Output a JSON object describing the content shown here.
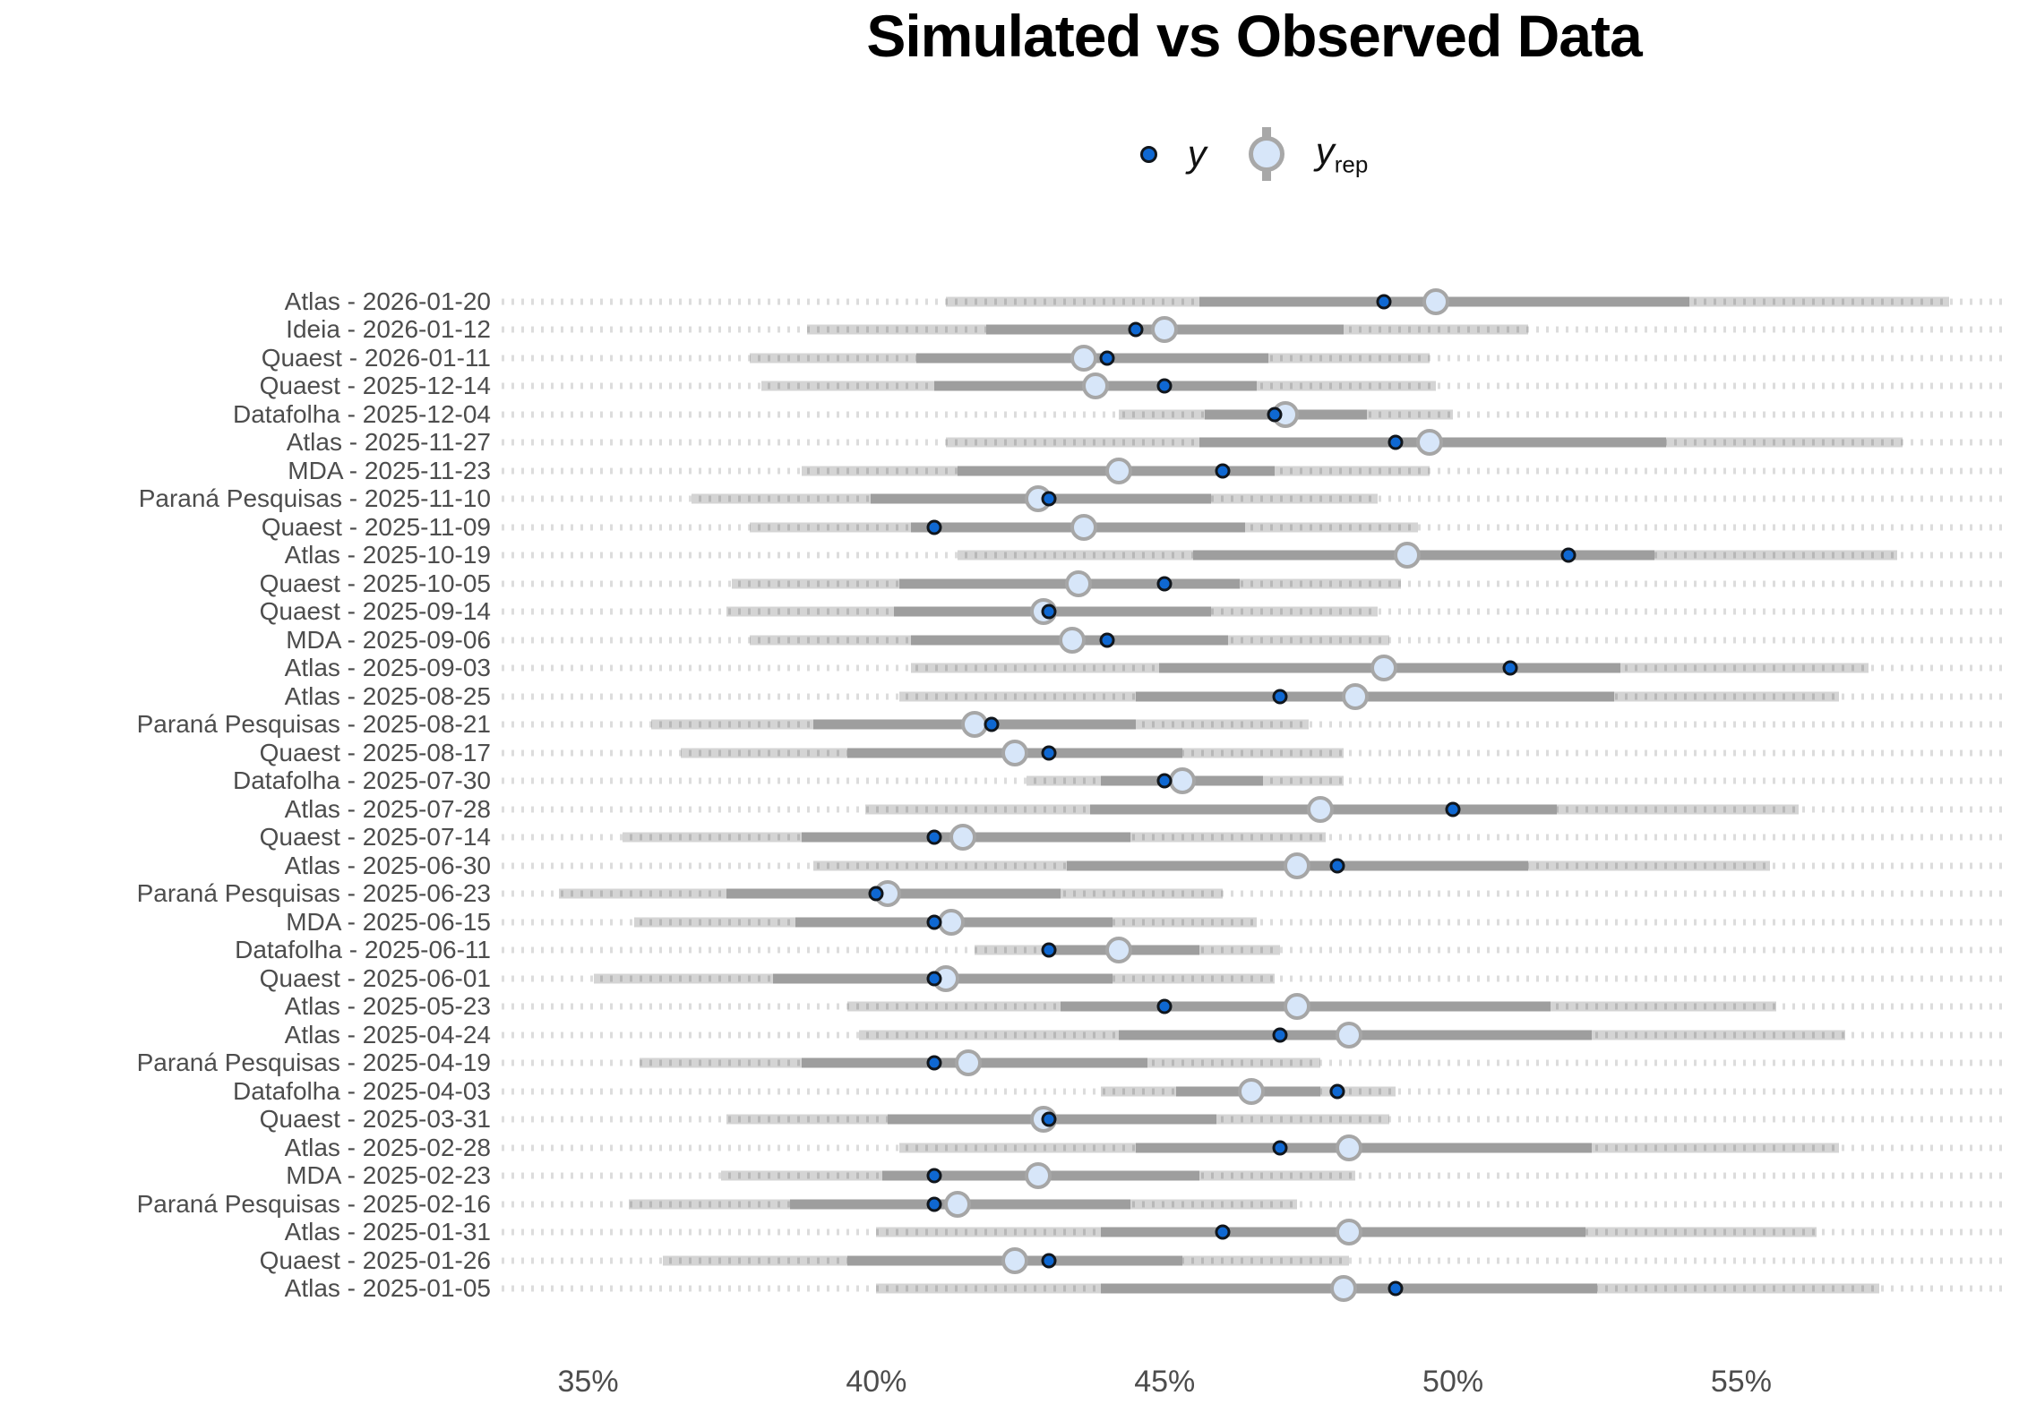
{
  "chart_data": {
    "type": "scatter",
    "title": "Simulated vs Observed Data",
    "xlabel": "",
    "ylabel": "",
    "x_unit": "%",
    "xlim": [
      33.5,
      59.6
    ],
    "xticks": [
      35,
      40,
      45,
      50,
      55
    ],
    "x_tick_suffix": "%",
    "grid": "dotted horizontal row guides only",
    "legend_position": "top-center",
    "legend": {
      "y": "y",
      "yrep_base": "y",
      "yrep_sub": "rep"
    },
    "series_meaning": {
      "y": "observed poll value (dark blue dot)",
      "y_rep": "posterior predictive mean (light blue circle)",
      "inner_interval": "dark gray thick bar",
      "outer_interval": "light gray bar"
    },
    "rows": [
      {
        "label": "Atlas - 2026-01-20",
        "outer": [
          41.2,
          58.6
        ],
        "inner": [
          45.6,
          54.1
        ],
        "y_rep": 49.7,
        "y": 48.8
      },
      {
        "label": "Ideia - 2026-01-12",
        "outer": [
          38.8,
          51.3
        ],
        "inner": [
          41.9,
          48.1
        ],
        "y_rep": 45.0,
        "y": 44.5
      },
      {
        "label": "Quaest - 2026-01-11",
        "outer": [
          37.8,
          49.6
        ],
        "inner": [
          40.7,
          46.8
        ],
        "y_rep": 43.6,
        "y": 44.0
      },
      {
        "label": "Quaest - 2025-12-14",
        "outer": [
          38.0,
          49.7
        ],
        "inner": [
          41.0,
          46.6
        ],
        "y_rep": 43.8,
        "y": 45.0
      },
      {
        "label": "Datafolha - 2025-12-04",
        "outer": [
          44.2,
          50.0
        ],
        "inner": [
          45.7,
          48.5
        ],
        "y_rep": 47.1,
        "y": 46.9
      },
      {
        "label": "Atlas - 2025-11-27",
        "outer": [
          41.2,
          57.8
        ],
        "inner": [
          45.6,
          53.7
        ],
        "y_rep": 49.6,
        "y": 49.0
      },
      {
        "label": "MDA - 2025-11-23",
        "outer": [
          38.7,
          49.6
        ],
        "inner": [
          41.4,
          46.9
        ],
        "y_rep": 44.2,
        "y": 46.0
      },
      {
        "label": "Paraná Pesquisas - 2025-11-10",
        "outer": [
          36.8,
          48.7
        ],
        "inner": [
          39.9,
          45.8
        ],
        "y_rep": 42.8,
        "y": 43.0
      },
      {
        "label": "Quaest - 2025-11-09",
        "outer": [
          37.8,
          49.4
        ],
        "inner": [
          40.6,
          46.4
        ],
        "y_rep": 43.6,
        "y": 41.0
      },
      {
        "label": "Atlas - 2025-10-19",
        "outer": [
          41.4,
          57.7
        ],
        "inner": [
          45.5,
          53.5
        ],
        "y_rep": 49.2,
        "y": 52.0
      },
      {
        "label": "Quaest - 2025-10-05",
        "outer": [
          37.5,
          49.1
        ],
        "inner": [
          40.4,
          46.3
        ],
        "y_rep": 43.5,
        "y": 45.0
      },
      {
        "label": "Quaest - 2025-09-14",
        "outer": [
          37.4,
          48.7
        ],
        "inner": [
          40.3,
          45.8
        ],
        "y_rep": 42.9,
        "y": 43.0
      },
      {
        "label": "MDA - 2025-09-06",
        "outer": [
          37.8,
          48.9
        ],
        "inner": [
          40.6,
          46.1
        ],
        "y_rep": 43.4,
        "y": 44.0
      },
      {
        "label": "Atlas - 2025-09-03",
        "outer": [
          40.6,
          57.2
        ],
        "inner": [
          44.9,
          52.9
        ],
        "y_rep": 48.8,
        "y": 51.0
      },
      {
        "label": "Atlas - 2025-08-25",
        "outer": [
          40.4,
          56.7
        ],
        "inner": [
          44.5,
          52.8
        ],
        "y_rep": 48.3,
        "y": 47.0
      },
      {
        "label": "Paraná Pesquisas - 2025-08-21",
        "outer": [
          36.1,
          47.5
        ],
        "inner": [
          38.9,
          44.5
        ],
        "y_rep": 41.7,
        "y": 42.0
      },
      {
        "label": "Quaest - 2025-08-17",
        "outer": [
          36.6,
          48.1
        ],
        "inner": [
          39.5,
          45.3
        ],
        "y_rep": 42.4,
        "y": 43.0
      },
      {
        "label": "Datafolha - 2025-07-30",
        "outer": [
          42.6,
          48.1
        ],
        "inner": [
          43.9,
          46.7
        ],
        "y_rep": 45.3,
        "y": 45.0
      },
      {
        "label": "Atlas - 2025-07-28",
        "outer": [
          39.8,
          56.0
        ],
        "inner": [
          43.7,
          51.8
        ],
        "y_rep": 47.7,
        "y": 50.0
      },
      {
        "label": "Quaest - 2025-07-14",
        "outer": [
          35.6,
          47.8
        ],
        "inner": [
          38.7,
          44.4
        ],
        "y_rep": 41.5,
        "y": 41.0
      },
      {
        "label": "Atlas - 2025-06-30",
        "outer": [
          38.9,
          55.5
        ],
        "inner": [
          43.3,
          51.3
        ],
        "y_rep": 47.3,
        "y": 48.0
      },
      {
        "label": "Paraná Pesquisas - 2025-06-23",
        "outer": [
          34.5,
          46.0
        ],
        "inner": [
          37.4,
          43.2
        ],
        "y_rep": 40.2,
        "y": 40.0
      },
      {
        "label": "MDA - 2025-06-15",
        "outer": [
          35.8,
          46.6
        ],
        "inner": [
          38.6,
          44.1
        ],
        "y_rep": 41.3,
        "y": 41.0
      },
      {
        "label": "Datafolha - 2025-06-11",
        "outer": [
          41.7,
          47.0
        ],
        "inner": [
          43.0,
          45.6
        ],
        "y_rep": 44.2,
        "y": 43.0
      },
      {
        "label": "Quaest - 2025-06-01",
        "outer": [
          35.1,
          46.9
        ],
        "inner": [
          38.2,
          44.1
        ],
        "y_rep": 41.2,
        "y": 41.0
      },
      {
        "label": "Atlas - 2025-05-23",
        "outer": [
          39.5,
          55.6
        ],
        "inner": [
          43.2,
          51.7
        ],
        "y_rep": 47.3,
        "y": 45.0
      },
      {
        "label": "Atlas - 2025-04-24",
        "outer": [
          39.7,
          56.8
        ],
        "inner": [
          44.2,
          52.4
        ],
        "y_rep": 48.2,
        "y": 47.0
      },
      {
        "label": "Paraná Pesquisas - 2025-04-19",
        "outer": [
          35.9,
          47.7
        ],
        "inner": [
          38.7,
          44.7
        ],
        "y_rep": 41.6,
        "y": 41.0
      },
      {
        "label": "Datafolha - 2025-04-03",
        "outer": [
          43.9,
          49.0
        ],
        "inner": [
          45.2,
          47.7
        ],
        "y_rep": 46.5,
        "y": 48.0
      },
      {
        "label": "Quaest - 2025-03-31",
        "outer": [
          37.4,
          48.9
        ],
        "inner": [
          40.2,
          45.9
        ],
        "y_rep": 42.9,
        "y": 43.0
      },
      {
        "label": "Atlas - 2025-02-28",
        "outer": [
          40.4,
          56.7
        ],
        "inner": [
          44.5,
          52.4
        ],
        "y_rep": 48.2,
        "y": 47.0
      },
      {
        "label": "MDA - 2025-02-23",
        "outer": [
          37.3,
          48.3
        ],
        "inner": [
          40.1,
          45.6
        ],
        "y_rep": 42.8,
        "y": 41.0
      },
      {
        "label": "Paraná Pesquisas - 2025-02-16",
        "outer": [
          35.7,
          47.3
        ],
        "inner": [
          38.5,
          44.4
        ],
        "y_rep": 41.4,
        "y": 41.0
      },
      {
        "label": "Atlas - 2025-01-31",
        "outer": [
          40.0,
          56.3
        ],
        "inner": [
          43.9,
          52.3
        ],
        "y_rep": 48.2,
        "y": 46.0
      },
      {
        "label": "Quaest - 2025-01-26",
        "outer": [
          36.3,
          48.2
        ],
        "inner": [
          39.5,
          45.3
        ],
        "y_rep": 42.4,
        "y": 43.0
      },
      {
        "label": "Atlas - 2025-01-05",
        "outer": [
          40.0,
          57.4
        ],
        "inner": [
          43.9,
          52.5
        ],
        "y_rep": 48.1,
        "y": 49.0
      }
    ],
    "colors": {
      "background": "#ffffff",
      "title": "#000000",
      "row_label": "#4d4d4d",
      "axis_tick_label": "#4d4d4d",
      "outer_interval": "#d4d4d4",
      "inner_interval": "#9e9e9e",
      "row_guide_dots": "#d9d9d9",
      "yrep_fill": "#d7e6f9",
      "yrep_stroke": "#a6a6a6",
      "y_fill": "#0f68d2",
      "y_stroke": "#11161c"
    }
  }
}
